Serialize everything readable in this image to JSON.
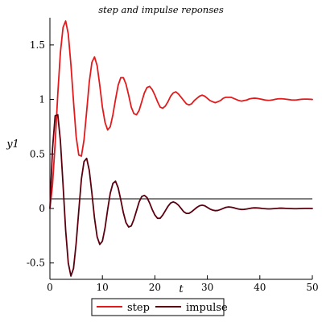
{
  "chart_data": {
    "type": "line",
    "title": "step and impulse reponses",
    "xlabel": "t",
    "ylabel": "y1",
    "xlim": [
      0,
      50
    ],
    "ylim": [
      -0.65,
      1.75
    ],
    "xticks": [
      0,
      10,
      20,
      30,
      40,
      50
    ],
    "yticks": [
      -0.5,
      0,
      0.5,
      1,
      1.5
    ],
    "xtick_labels": [
      "0",
      "10",
      "20",
      "30",
      "40",
      "50"
    ],
    "ytick_labels": [
      "-0.5",
      "0",
      "0.5",
      "1",
      "1.5"
    ],
    "grid": false,
    "legend_position": "bottom",
    "series": [
      {
        "name": "step",
        "color": "#e31a1c",
        "x": [
          0,
          0.5,
          1,
          1.5,
          2,
          2.5,
          3,
          3.5,
          4,
          4.5,
          5,
          5.5,
          6,
          6.5,
          7,
          7.5,
          8,
          8.5,
          9,
          9.5,
          10,
          10.5,
          11,
          11.5,
          12,
          12.5,
          13,
          13.5,
          14,
          14.5,
          15,
          15.5,
          16,
          16.5,
          17,
          17.5,
          18,
          18.5,
          19,
          19.5,
          20,
          20.5,
          21,
          21.5,
          22,
          22.5,
          23,
          23.5,
          24,
          24.5,
          25,
          25.5,
          26,
          26.5,
          27,
          27.5,
          28,
          28.5,
          29,
          29.5,
          30,
          30.5,
          31,
          31.5,
          32,
          32.5,
          33,
          33.5,
          34,
          34.5,
          35,
          35.5,
          36,
          36.5,
          37,
          37.5,
          38,
          38.5,
          39,
          39.5,
          40,
          40.5,
          41,
          41.5,
          42,
          42.5,
          43,
          43.5,
          44,
          44.5,
          45,
          45.5,
          46,
          46.5,
          47,
          47.5,
          48,
          48.5,
          49,
          49.5,
          50
        ],
        "y": [
          0.0,
          0.22,
          0.6,
          1.05,
          1.43,
          1.66,
          1.72,
          1.6,
          1.32,
          0.98,
          0.66,
          0.49,
          0.48,
          0.63,
          0.89,
          1.16,
          1.34,
          1.39,
          1.31,
          1.13,
          0.93,
          0.79,
          0.72,
          0.75,
          0.86,
          1.0,
          1.13,
          1.2,
          1.2,
          1.14,
          1.04,
          0.93,
          0.87,
          0.86,
          0.9,
          0.98,
          1.06,
          1.11,
          1.12,
          1.09,
          1.04,
          0.98,
          0.93,
          0.92,
          0.94,
          0.98,
          1.03,
          1.06,
          1.07,
          1.05,
          1.02,
          0.99,
          0.96,
          0.95,
          0.96,
          0.99,
          1.01,
          1.03,
          1.04,
          1.03,
          1.01,
          0.99,
          0.98,
          0.97,
          0.98,
          0.99,
          1.01,
          1.02,
          1.02,
          1.02,
          1.01,
          1.0,
          0.99,
          0.985,
          0.99,
          0.995,
          1.005,
          1.01,
          1.012,
          1.01,
          1.005,
          1.0,
          0.995,
          0.992,
          0.993,
          0.997,
          1.002,
          1.006,
          1.007,
          1.005,
          1.002,
          0.999,
          0.996,
          0.995,
          0.996,
          0.999,
          1.002,
          1.003,
          1.003,
          1.002,
          1.0
        ]
      },
      {
        "name": "impulse",
        "color": "#5c0010",
        "x": [
          0,
          0.5,
          1,
          1.5,
          2,
          2.5,
          3,
          3.5,
          4,
          4.5,
          5,
          5.5,
          6,
          6.5,
          7,
          7.5,
          8,
          8.5,
          9,
          9.5,
          10,
          10.5,
          11,
          11.5,
          12,
          12.5,
          13,
          13.5,
          14,
          14.5,
          15,
          15.5,
          16,
          16.5,
          17,
          17.5,
          18,
          18.5,
          19,
          19.5,
          20,
          20.5,
          21,
          21.5,
          22,
          22.5,
          23,
          23.5,
          24,
          24.5,
          25,
          25.5,
          26,
          26.5,
          27,
          27.5,
          28,
          28.5,
          29,
          29.5,
          30,
          30.5,
          31,
          31.5,
          32,
          32.5,
          33,
          33.5,
          34,
          34.5,
          35,
          35.5,
          36,
          36.5,
          37,
          37.5,
          38,
          38.5,
          39,
          39.5,
          40,
          40.5,
          41,
          41.5,
          42,
          42.5,
          43,
          43.5,
          44,
          44.5,
          45,
          45.5,
          46,
          46.5,
          47,
          47.5,
          48,
          48.5,
          49,
          49.5,
          50
        ],
        "y": [
          0.0,
          0.55,
          0.85,
          0.86,
          0.62,
          0.22,
          -0.2,
          -0.5,
          -0.62,
          -0.55,
          -0.32,
          -0.02,
          0.27,
          0.43,
          0.46,
          0.35,
          0.14,
          -0.09,
          -0.26,
          -0.33,
          -0.3,
          -0.18,
          -0.01,
          0.14,
          0.23,
          0.25,
          0.19,
          0.08,
          -0.04,
          -0.13,
          -0.17,
          -0.16,
          -0.1,
          -0.02,
          0.06,
          0.11,
          0.12,
          0.1,
          0.05,
          -0.01,
          -0.06,
          -0.09,
          -0.09,
          -0.06,
          -0.02,
          0.02,
          0.05,
          0.06,
          0.05,
          0.03,
          0.0,
          -0.03,
          -0.045,
          -0.045,
          -0.03,
          -0.01,
          0.01,
          0.025,
          0.03,
          0.025,
          0.01,
          -0.005,
          -0.015,
          -0.02,
          -0.018,
          -0.01,
          0.0,
          0.01,
          0.014,
          0.012,
          0.007,
          0.0,
          -0.006,
          -0.009,
          -0.008,
          -0.005,
          0.0,
          0.004,
          0.006,
          0.005,
          0.003,
          0.0,
          -0.002,
          -0.004,
          -0.004,
          -0.002,
          0.0,
          0.002,
          0.003,
          0.002,
          0.001,
          0.0,
          -0.001,
          -0.002,
          -0.002,
          -0.001,
          0.0,
          0.001,
          0.001,
          0.001,
          0.0
        ]
      }
    ]
  }
}
